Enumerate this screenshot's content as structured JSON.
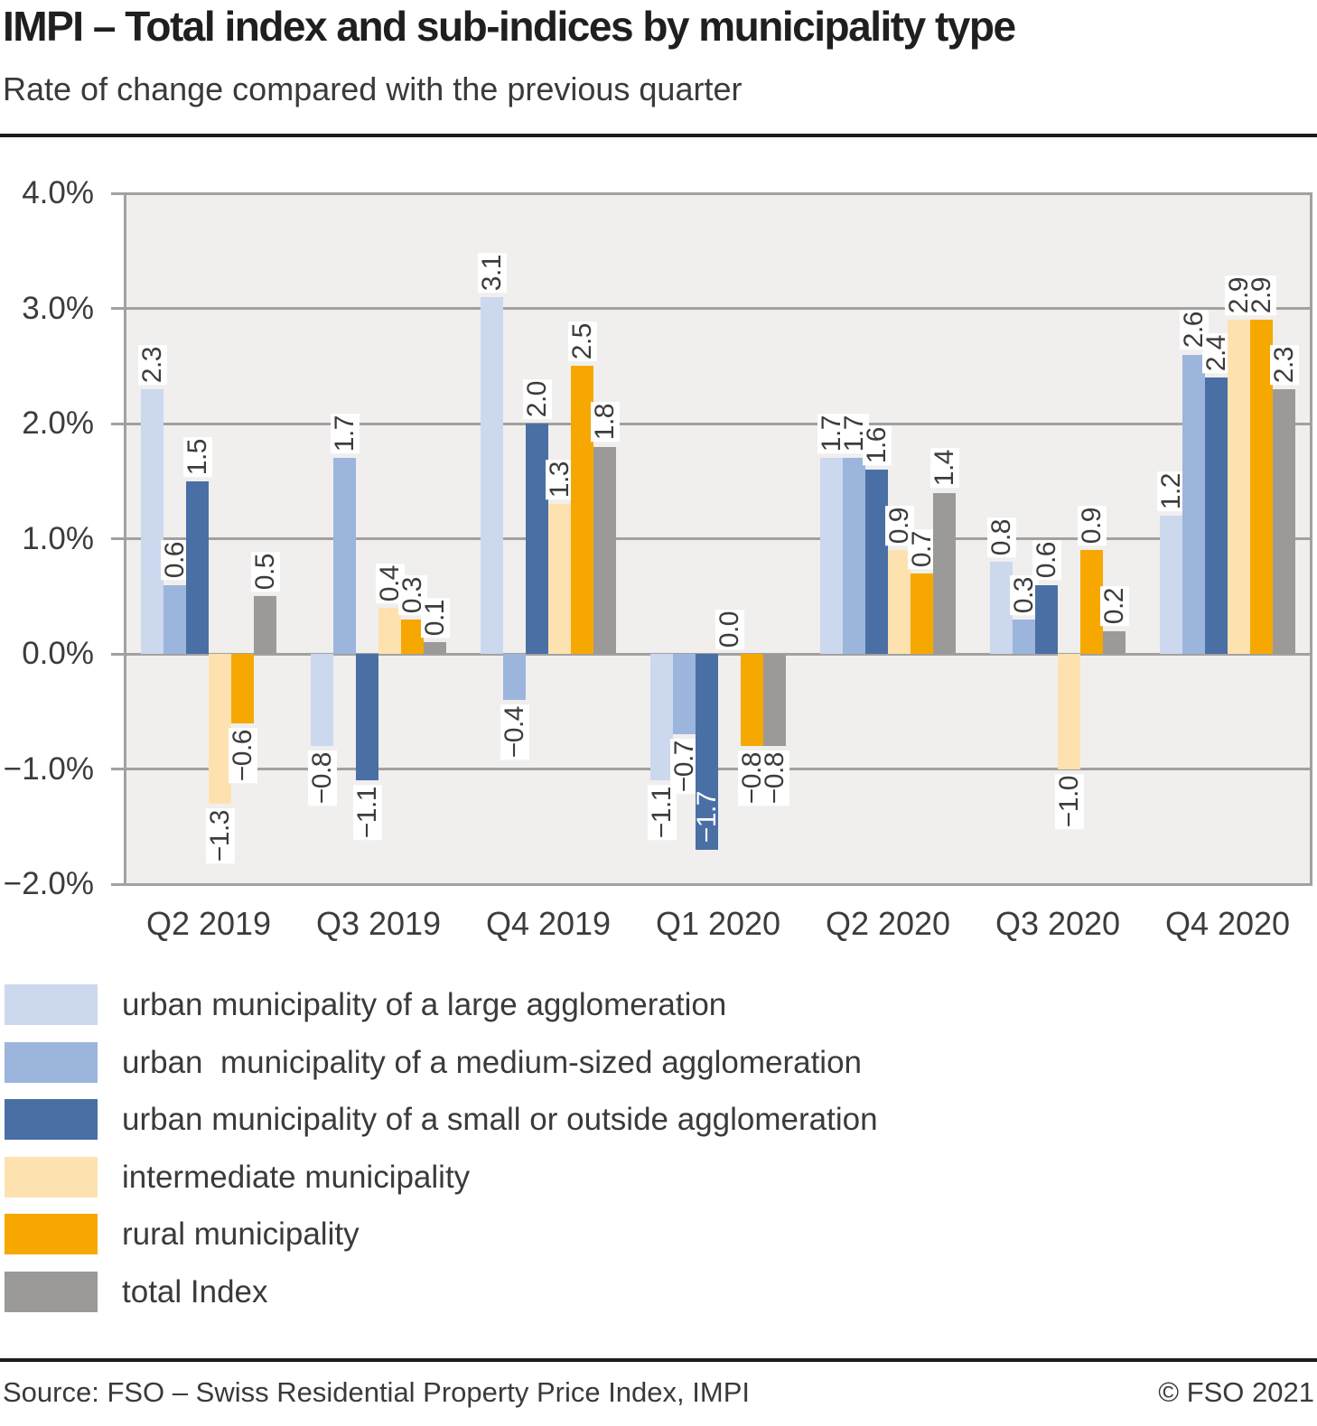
{
  "page": {
    "title": "IMPI – Total index and sub-indices by municipality type",
    "subtitle": "Rate of change compared with the previous quarter",
    "footer": {
      "source": "Source: FSO – Swiss Residential Property Price Index, IMPI",
      "copyright": "© FSO 2021"
    }
  },
  "chart_data": {
    "type": "bar",
    "title": "IMPI – Total index and sub-indices by municipality type",
    "subtitle": "Rate of change compared with the previous quarter",
    "categories": [
      "Q2 2019",
      "Q3 2019",
      "Q4 2019",
      "Q1 2020",
      "Q2 2020",
      "Q3 2020",
      "Q4 2020"
    ],
    "series": [
      {
        "name": "urban municipality of a large agglomeration",
        "color": "#ccd8ee",
        "values": [
          2.3,
          -0.8,
          3.1,
          -1.1,
          1.7,
          0.8,
          1.2
        ]
      },
      {
        "name": "urban  municipality of a medium-sized agglomeration",
        "color": "#9cb5dd",
        "values": [
          0.6,
          1.7,
          -0.4,
          -0.7,
          1.7,
          0.3,
          2.6
        ]
      },
      {
        "name": "urban municipality of a small or outside agglomeration",
        "color": "#4a6fa5",
        "values": [
          1.5,
          -1.1,
          2.0,
          -1.7,
          1.6,
          0.6,
          2.4
        ]
      },
      {
        "name": "intermediate municipality",
        "color": "#fde2b0",
        "values": [
          -1.3,
          0.4,
          1.3,
          0.0,
          0.9,
          -1.0,
          2.9
        ]
      },
      {
        "name": "rural municipality",
        "color": "#f6a800",
        "values": [
          -0.6,
          0.3,
          2.5,
          -0.8,
          0.7,
          0.9,
          2.9
        ]
      },
      {
        "name": "total Index",
        "color": "#9b9a98",
        "values": [
          0.5,
          0.1,
          1.8,
          -0.8,
          1.4,
          0.2,
          2.3
        ]
      }
    ],
    "xlabel": "",
    "ylabel": "",
    "ylim": [
      -2.0,
      4.0
    ],
    "y_ticks": [
      "4.0%",
      "3.0%",
      "2.0%",
      "1.0%",
      "0.0%",
      "−1.0%",
      "−2.0%"
    ],
    "grid": true,
    "value_labels": true,
    "value_label_overrides": [
      {
        "category_index": 3,
        "series_index": 2,
        "style": "inside-white"
      }
    ],
    "legend_position": "bottom-left",
    "colors": {
      "plot_background": "#f0efee",
      "grid": "#a2a1a0",
      "value_label_text": "#3c3c3c",
      "rule": "#1c1c1c"
    }
  }
}
